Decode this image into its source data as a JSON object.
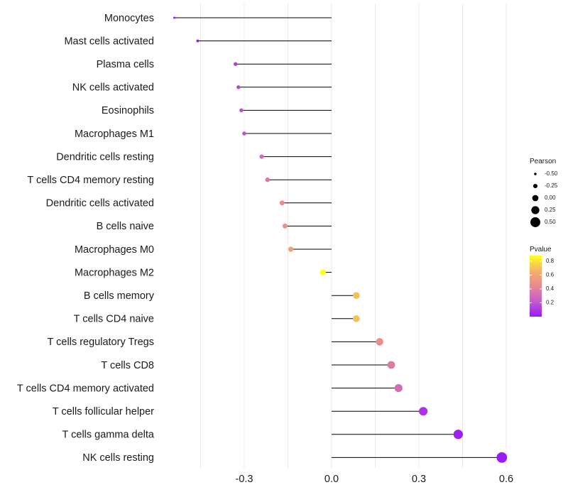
{
  "chart_data": {
    "type": "lollipop",
    "title": "",
    "xlabel": "",
    "ylabel": "",
    "xlim": [
      -0.54,
      0.65
    ],
    "xticks": [
      -0.3,
      0.0,
      0.3,
      0.6
    ],
    "xtick_labels": [
      "-0.3",
      "0.0",
      "0.3",
      "0.6"
    ],
    "grid": true,
    "categories": [
      "Monocytes",
      "Mast cells activated",
      "Plasma cells",
      "NK cells activated",
      "Eosinophils",
      "Macrophages M1",
      "Dendritic cells resting",
      "T cells CD4 memory resting",
      "Dendritic cells activated",
      "B cells naive",
      "Macrophages M0",
      "Macrophages M2",
      "B cells memory",
      "T cells CD4 naive",
      "T cells regulatory  Tregs",
      "T cells CD8",
      "T cells CD4 memory activated",
      "T cells follicular helper",
      "T cells gamma delta",
      "NK cells resting"
    ],
    "values": [
      -0.54,
      -0.46,
      -0.33,
      -0.32,
      -0.31,
      -0.3,
      -0.24,
      -0.22,
      -0.17,
      -0.16,
      -0.14,
      -0.03,
      0.085,
      0.085,
      0.165,
      0.205,
      0.23,
      0.315,
      0.435,
      0.585
    ],
    "pvalues": [
      0.001,
      0.02,
      0.12,
      0.15,
      0.17,
      0.19,
      0.3,
      0.35,
      0.47,
      0.5,
      0.57,
      0.88,
      0.7,
      0.7,
      0.48,
      0.38,
      0.3,
      0.08,
      0.02,
      0.001
    ],
    "legend": {
      "size_title": "Pearson",
      "size_labels": [
        "-0.50",
        "-0.25",
        "0.00",
        "0.25",
        "0.50"
      ],
      "size_values": [
        -0.5,
        -0.25,
        0.0,
        0.25,
        0.5
      ],
      "color_title": "Pvalue",
      "color_labels": [
        "0.8",
        "0.6",
        "0.4",
        "0.2"
      ],
      "color_values": [
        0.8,
        0.6,
        0.4,
        0.2
      ],
      "color_range": [
        0.001,
        0.88
      ],
      "placement": "right",
      "colors": [
        "#9b19f5",
        "#c65bd0",
        "#e6898f",
        "#f2b26a",
        "#ffff1a"
      ]
    }
  }
}
